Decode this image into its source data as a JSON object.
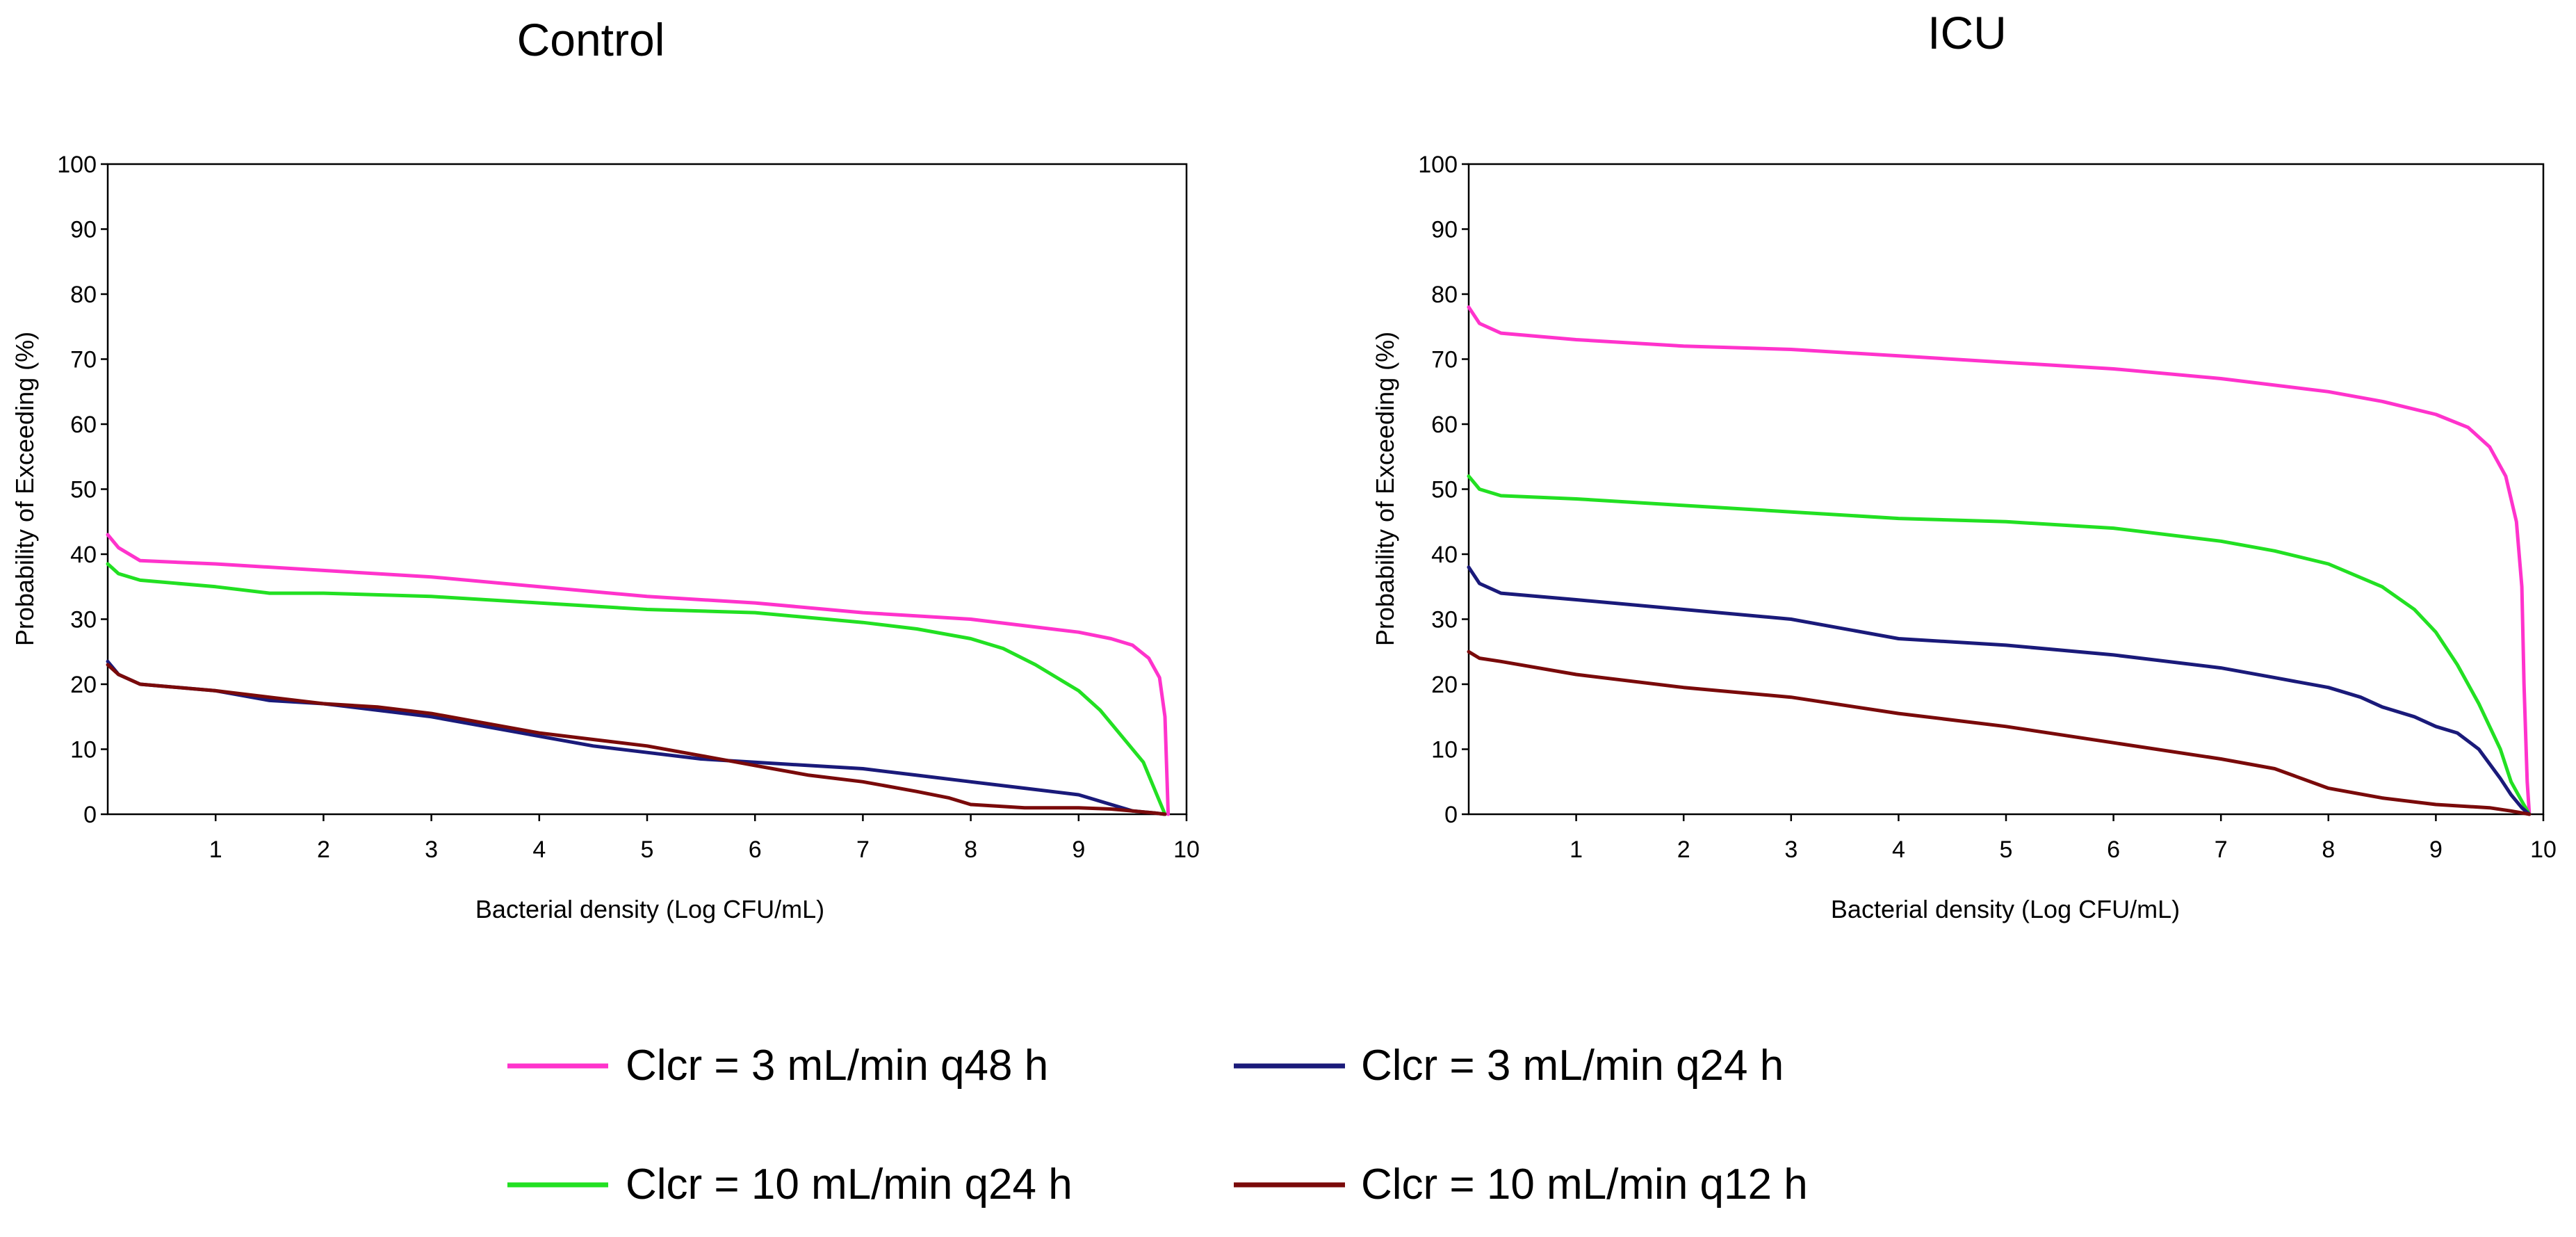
{
  "legend": [
    {
      "label": "Clcr = 3 mL/min q48 h",
      "color": "#ff33cc"
    },
    {
      "label": "Clcr = 3 mL/min q24 h",
      "color": "#1a1a7a"
    },
    {
      "label": "Clcr = 10 mL/min q24 h",
      "color": "#22e022"
    },
    {
      "label": "Clcr = 10 mL/min q12 h",
      "color": "#7a0a0a"
    }
  ],
  "chart_data": [
    {
      "type": "line",
      "title": "Control",
      "xlabel": "Bacterial density (Log CFU/mL)",
      "ylabel": "Probability of Exceeding (%)",
      "xlim": [
        0,
        10
      ],
      "ylim": [
        0,
        100
      ],
      "xticks": [
        "1",
        "2",
        "3",
        "4",
        "5",
        "6",
        "7",
        "8",
        "9",
        "10"
      ],
      "yticks": [
        "0",
        "10",
        "20",
        "30",
        "40",
        "50",
        "60",
        "70",
        "80",
        "90",
        "100"
      ],
      "series": [
        {
          "name": "Clcr = 3 mL/min q48 h",
          "color": "#ff33cc",
          "x": [
            0,
            0.1,
            0.3,
            1,
            2,
            3,
            4,
            5,
            6,
            7,
            8,
            8.5,
            9,
            9.3,
            9.5,
            9.65,
            9.75,
            9.8,
            9.82,
            9.83
          ],
          "y": [
            43,
            41,
            39,
            38.5,
            37.5,
            36.5,
            35,
            33.5,
            32.5,
            31,
            30,
            29,
            28,
            27,
            26,
            24,
            21,
            15,
            5,
            0
          ]
        },
        {
          "name": "Clcr = 10 mL/min q24 h",
          "color": "#22e022",
          "x": [
            0,
            0.1,
            0.3,
            1,
            1.5,
            2,
            3,
            4,
            5,
            6,
            7,
            7.5,
            8,
            8.3,
            8.6,
            9,
            9.2,
            9.4,
            9.6,
            9.7,
            9.8
          ],
          "y": [
            38.5,
            37,
            36,
            35,
            34,
            34,
            33.5,
            32.5,
            31.5,
            31,
            29.5,
            28.5,
            27,
            25.5,
            23,
            19,
            16,
            12,
            8,
            4,
            0
          ]
        },
        {
          "name": "Clcr = 3 mL/min q24 h",
          "color": "#1a1a7a",
          "x": [
            0,
            0.1,
            0.3,
            1,
            1.5,
            2,
            2.5,
            3,
            3.5,
            4,
            4.5,
            5,
            5.5,
            6,
            6.5,
            7,
            7.5,
            8,
            8.5,
            9,
            9.3,
            9.5,
            9.7,
            9.8
          ],
          "y": [
            23.5,
            21.5,
            20,
            19,
            17.5,
            17,
            16,
            15,
            13.5,
            12,
            10.5,
            9.5,
            8.5,
            8,
            7.5,
            7,
            6,
            5,
            4,
            3,
            1.5,
            0.5,
            0.2,
            0
          ]
        },
        {
          "name": "Clcr = 10 mL/min q12 h",
          "color": "#7a0a0a",
          "x": [
            0,
            0.1,
            0.3,
            1,
            1.5,
            2,
            2.5,
            3,
            3.5,
            4,
            4.5,
            5,
            5.5,
            6,
            6.5,
            7,
            7.5,
            7.8,
            8,
            8.5,
            9,
            9.3,
            9.5,
            9.7,
            9.8
          ],
          "y": [
            23,
            21.5,
            20,
            19,
            18,
            17,
            16.5,
            15.5,
            14,
            12.5,
            11.5,
            10.5,
            9,
            7.5,
            6,
            5,
            3.5,
            2.5,
            1.5,
            1,
            1,
            0.8,
            0.5,
            0.2,
            0
          ]
        }
      ]
    },
    {
      "type": "line",
      "title": "ICU",
      "xlabel": "Bacterial density (Log CFU/mL)",
      "ylabel": "Probability of Exceeding (%)",
      "xlim": [
        0,
        10
      ],
      "ylim": [
        0,
        100
      ],
      "xticks": [
        "1",
        "2",
        "3",
        "4",
        "5",
        "6",
        "7",
        "8",
        "9",
        "10"
      ],
      "yticks": [
        "0",
        "10",
        "20",
        "30",
        "40",
        "50",
        "60",
        "70",
        "80",
        "90",
        "100"
      ],
      "series": [
        {
          "name": "Clcr = 3 mL/min q48 h",
          "color": "#ff33cc",
          "x": [
            0,
            0.1,
            0.3,
            1,
            2,
            3,
            4,
            5,
            6,
            7,
            8,
            8.5,
            9,
            9.3,
            9.5,
            9.65,
            9.75,
            9.8,
            9.82,
            9.85,
            9.87
          ],
          "y": [
            78,
            75.5,
            74,
            73,
            72,
            71.5,
            70.5,
            69.5,
            68.5,
            67,
            65,
            63.5,
            61.5,
            59.5,
            56.5,
            52,
            45,
            35,
            20,
            5,
            0
          ]
        },
        {
          "name": "Clcr = 10 mL/min q24 h",
          "color": "#22e022",
          "x": [
            0,
            0.1,
            0.3,
            1,
            2,
            3,
            4,
            5,
            6,
            7,
            7.5,
            8,
            8.5,
            8.8,
            9,
            9.2,
            9.4,
            9.6,
            9.7,
            9.8,
            9.87
          ],
          "y": [
            52,
            50,
            49,
            48.5,
            47.5,
            46.5,
            45.5,
            45,
            44,
            42,
            40.5,
            38.5,
            35,
            31.5,
            28,
            23,
            17,
            10,
            5,
            2,
            0
          ]
        },
        {
          "name": "Clcr = 3 mL/min q24 h",
          "color": "#1a1a7a",
          "x": [
            0,
            0.1,
            0.3,
            1,
            2,
            3,
            4,
            5,
            6,
            7,
            7.5,
            8,
            8.3,
            8.5,
            8.8,
            9,
            9.2,
            9.4,
            9.6,
            9.7,
            9.8,
            9.87
          ],
          "y": [
            38,
            35.5,
            34,
            33,
            31.5,
            30,
            27,
            26,
            24.5,
            22.5,
            21,
            19.5,
            18,
            16.5,
            15,
            13.5,
            12.5,
            10,
            5.5,
            3,
            1,
            0
          ]
        },
        {
          "name": "Clcr = 10 mL/min q12 h",
          "color": "#7a0a0a",
          "x": [
            0,
            0.1,
            0.3,
            1,
            2,
            3,
            4,
            5,
            6,
            7,
            7.5,
            8,
            8.5,
            9,
            9.5,
            9.7,
            9.8,
            9.87
          ],
          "y": [
            25,
            24,
            23.5,
            21.5,
            19.5,
            18,
            15.5,
            13.5,
            11,
            8.5,
            7,
            4,
            2.5,
            1.5,
            1,
            0.5,
            0.2,
            0
          ]
        }
      ]
    }
  ]
}
